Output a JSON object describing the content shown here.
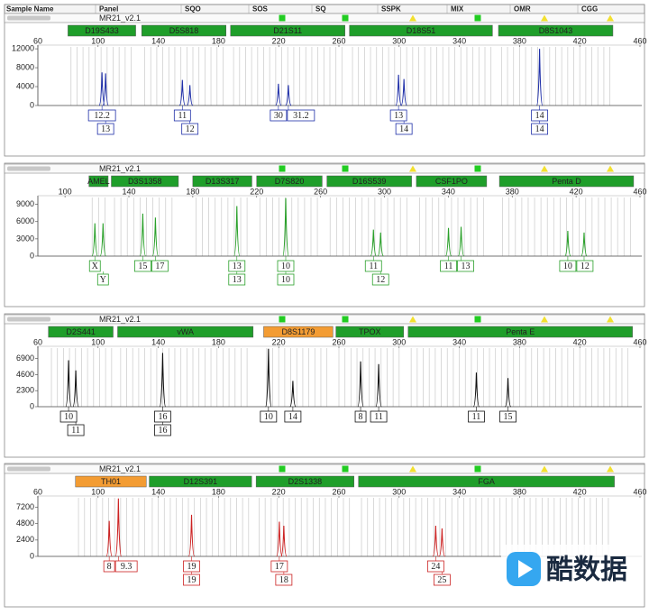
{
  "columns": [
    "Sample Name",
    "Panel",
    "SQO",
    "SOS",
    "SQ",
    "SSPK",
    "MIX",
    "OMR",
    "CGG"
  ],
  "panels": [
    {
      "panel_name": "MR21_v2.1",
      "color": "#1f2fa8",
      "xlim": [
        60,
        460
      ],
      "xticks": [
        60,
        100,
        140,
        180,
        220,
        260,
        300,
        340,
        380,
        420,
        460
      ],
      "ylim": [
        0,
        12400
      ],
      "yticks": [
        0,
        4000,
        8000,
        12000
      ],
      "loci": [
        {
          "name": "D19S433",
          "color": "#1f9e2a",
          "range": [
            80,
            125
          ],
          "peaks": [
            {
              "size": 102.6,
              "height": 7000,
              "alleles": [
                "12.2"
              ]
            },
            {
              "size": 105,
              "height": 6800,
              "alleles": [
                "13"
              ]
            }
          ]
        },
        {
          "name": "D5S818",
          "color": "#1f9e2a",
          "range": [
            129,
            185
          ],
          "peaks": [
            {
              "size": 156,
              "height": 5400,
              "alleles": [
                "11"
              ]
            },
            {
              "size": 161,
              "height": 4300,
              "alleles": [
                "12"
              ]
            }
          ]
        },
        {
          "name": "D21S11",
          "color": "#1f9e2a",
          "range": [
            188,
            264
          ],
          "peaks": [
            {
              "size": 219.8,
              "height": 4600,
              "alleles": [
                "30"
              ]
            },
            {
              "size": 226.4,
              "height": 4300,
              "alleles": [
                "31.2"
              ]
            }
          ]
        },
        {
          "name": "D18S51",
          "color": "#1f9e2a",
          "range": [
            267,
            362
          ],
          "peaks": [
            {
              "size": 299.6,
              "height": 6500,
              "alleles": [
                "13"
              ]
            },
            {
              "size": 303.2,
              "height": 5600,
              "alleles": [
                "14"
              ]
            }
          ]
        },
        {
          "name": "D8S1043",
          "color": "#1f9e2a",
          "range": [
            366,
            442
          ],
          "peaks": [
            {
              "size": 393.3,
              "height": 12000,
              "alleles": [
                "14",
                "14"
              ]
            }
          ]
        }
      ]
    },
    {
      "panel_name": "MR21_v2.1",
      "color": "#2aa02a",
      "xlim": [
        83,
        460
      ],
      "xticks": [
        100,
        140,
        180,
        220,
        260,
        300,
        340,
        380,
        420,
        460
      ],
      "ylim": [
        0,
        10200
      ],
      "yticks": [
        0,
        3000,
        6000,
        9000
      ],
      "loci": [
        {
          "name": "AMEL",
          "color": "#1f9e2a",
          "range": [
            115,
            127
          ],
          "peaks": [
            {
              "size": 118.7,
              "height": 5700,
              "alleles": [
                "X"
              ]
            },
            {
              "size": 123.8,
              "height": 5700,
              "alleles": [
                "Y"
              ]
            }
          ]
        },
        {
          "name": "D3S1358",
          "color": "#1f9e2a",
          "range": [
            129,
            171
          ],
          "peaks": [
            {
              "size": 148.7,
              "height": 7400,
              "alleles": [
                "15"
              ]
            },
            {
              "size": 156.6,
              "height": 6700,
              "alleles": [
                "17"
              ]
            }
          ]
        },
        {
          "name": "D13S317",
          "color": "#1f9e2a",
          "range": [
            180,
            217
          ],
          "peaks": [
            {
              "size": 207.6,
              "height": 8700,
              "alleles": [
                "13",
                "13"
              ]
            }
          ]
        },
        {
          "name": "D7S820",
          "color": "#1f9e2a",
          "range": [
            220,
            261
          ],
          "peaks": [
            {
              "size": 238.2,
              "height": 10100,
              "alleles": [
                "10",
                "10"
              ]
            }
          ]
        },
        {
          "name": "D16S539",
          "color": "#1f9e2a",
          "range": [
            264,
            317
          ],
          "peaks": [
            {
              "size": 293.1,
              "height": 4600,
              "alleles": [
                "11"
              ]
            },
            {
              "size": 297.6,
              "height": 4100,
              "alleles": [
                "12"
              ]
            }
          ]
        },
        {
          "name": "CSF1PO",
          "color": "#1f9e2a",
          "range": [
            320,
            364
          ],
          "peaks": [
            {
              "size": 340.1,
              "height": 4900,
              "alleles": [
                "11"
              ]
            },
            {
              "size": 348,
              "height": 5100,
              "alleles": [
                "13"
              ]
            }
          ]
        },
        {
          "name": "Penta D",
          "color": "#1f9e2a",
          "range": [
            372,
            456
          ],
          "peaks": [
            {
              "size": 414.8,
              "height": 4400,
              "alleles": [
                "10"
              ]
            },
            {
              "size": 425,
              "height": 4100,
              "alleles": [
                "12"
              ]
            }
          ]
        }
      ]
    },
    {
      "panel_name": "MR21_v2.1",
      "color": "#111111",
      "xlim": [
        60,
        460
      ],
      "xticks": [
        60,
        100,
        140,
        180,
        220,
        260,
        300,
        340,
        380,
        420,
        460
      ],
      "ylim": [
        0,
        8400
      ],
      "yticks": [
        0,
        2300,
        4600,
        6900
      ],
      "loci": [
        {
          "name": "D2S441",
          "color": "#1f9e2a",
          "range": [
            67,
            110
          ],
          "peaks": [
            {
              "size": 80.4,
              "height": 6650,
              "alleles": [
                "10"
              ]
            },
            {
              "size": 85.2,
              "height": 5200,
              "alleles": [
                "11"
              ]
            }
          ]
        },
        {
          "name": "vWA",
          "color": "#1f9e2a",
          "range": [
            113,
            203
          ],
          "peaks": [
            {
              "size": 142.9,
              "height": 7700,
              "alleles": [
                "16",
                "16"
              ]
            }
          ]
        },
        {
          "name": "D8S1179",
          "color": "#f39c33",
          "range": [
            210,
            256
          ],
          "peaks": [
            {
              "size": 213.2,
              "height": 8300,
              "alleles": [
                "10"
              ]
            },
            {
              "size": 229.4,
              "height": 3700,
              "alleles": [
                "14"
              ]
            }
          ]
        },
        {
          "name": "TPOX",
          "color": "#1f9e2a",
          "range": [
            258,
            303
          ],
          "peaks": [
            {
              "size": 274.4,
              "height": 6500,
              "alleles": [
                "8"
              ]
            },
            {
              "size": 286.4,
              "height": 6100,
              "alleles": [
                "11"
              ]
            }
          ]
        },
        {
          "name": "Penta E",
          "color": "#1f9e2a",
          "range": [
            306,
            455
          ],
          "peaks": [
            {
              "size": 351.3,
              "height": 4900,
              "alleles": [
                "11"
              ]
            },
            {
              "size": 372.3,
              "height": 4100,
              "alleles": [
                "15"
              ]
            }
          ]
        }
      ]
    },
    {
      "panel_name": "MR21_v2.1",
      "color": "#cc2222",
      "xlim": [
        60,
        460
      ],
      "xticks": [
        60,
        100,
        140,
        180,
        220,
        260,
        300,
        340,
        380,
        420,
        460
      ],
      "ylim": [
        0,
        8600
      ],
      "yticks": [
        0,
        2400,
        4800,
        7200
      ],
      "loci": [
        {
          "name": "TH01",
          "color": "#f39c33",
          "range": [
            85,
            132
          ],
          "peaks": [
            {
              "size": 107.4,
              "height": 5200,
              "alleles": [
                "8"
              ]
            },
            {
              "size": 113.5,
              "height": 8500,
              "alleles": [
                "9.3"
              ]
            }
          ]
        },
        {
          "name": "D12S391",
          "color": "#1f9e2a",
          "range": [
            134,
            202
          ],
          "peaks": [
            {
              "size": 162.1,
              "height": 6100,
              "alleles": [
                "19",
                "19"
              ]
            }
          ]
        },
        {
          "name": "D2S1338",
          "color": "#1f9e2a",
          "range": [
            205,
            270
          ],
          "peaks": [
            {
              "size": 220.4,
              "height": 5100,
              "alleles": [
                "17"
              ]
            },
            {
              "size": 223.4,
              "height": 4500,
              "alleles": [
                "18"
              ]
            }
          ]
        },
        {
          "name": "FGA",
          "color": "#1f9e2a",
          "range": [
            273,
            443
          ],
          "peaks": [
            {
              "size": 324.3,
              "height": 4500,
              "alleles": [
                "24"
              ]
            },
            {
              "size": 328.5,
              "height": 4100,
              "alleles": [
                "25"
              ]
            }
          ]
        }
      ]
    }
  ],
  "watermark": "酷数据"
}
